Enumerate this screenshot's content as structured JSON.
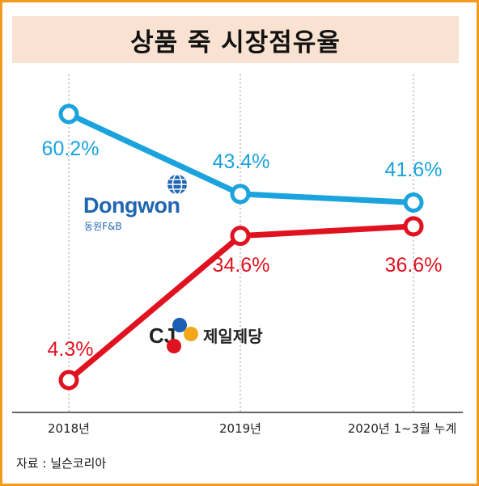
{
  "title": "상품 죽 시장점유율",
  "source": "자료 : 닐슨코리아",
  "chart_data": {
    "type": "line",
    "title": "상품 죽 시장점유율",
    "categories": [
      "2018년",
      "2019년",
      "2020년 1~3월 누계"
    ],
    "ylim": [
      0,
      70
    ],
    "grid": "vertical dotted lines at each category",
    "series": [
      {
        "name": "Dongwon 동원F&B",
        "color": "#1aa3dc",
        "values": [
          60.2,
          43.4,
          41.6
        ],
        "labels": [
          "60.2%",
          "43.4%",
          "41.6%"
        ]
      },
      {
        "name": "CJ 제일제당",
        "color": "#e1121f",
        "values": [
          4.3,
          34.6,
          36.6
        ],
        "labels": [
          "4.3%",
          "34.6%",
          "36.6%"
        ]
      }
    ]
  },
  "logos": {
    "dongwon": {
      "wordmark": "Dongwon",
      "sub": "동원F&B",
      "icon": "globe-icon",
      "color": "#1f66b1"
    },
    "cj": {
      "wordmark": "CJ",
      "sub": "제일제당",
      "icon": "cj-petals-icon"
    }
  }
}
